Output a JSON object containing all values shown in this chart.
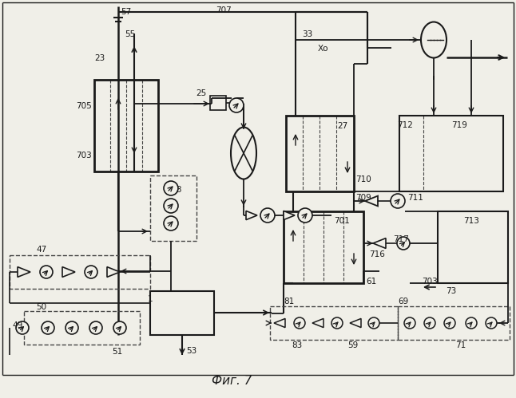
{
  "title": "Фиг. 7",
  "bg_color": "#f0efe8",
  "lc": "#1a1a1a",
  "dc": "#444444",
  "white": "#f0efe8"
}
